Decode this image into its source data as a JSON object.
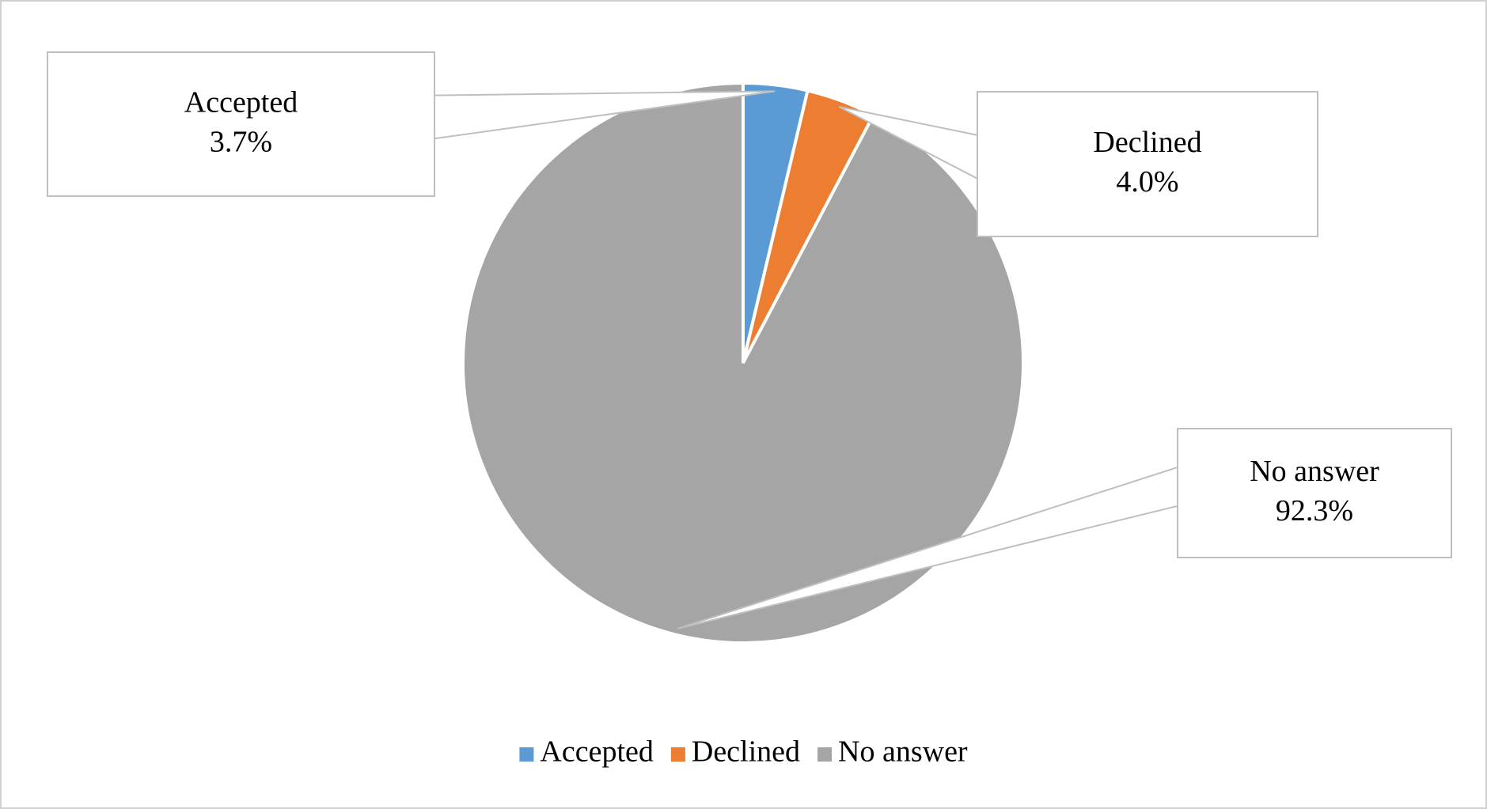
{
  "chart_data": {
    "type": "pie",
    "categories": [
      "Accepted",
      "Declined",
      "No answer"
    ],
    "values": [
      3.7,
      4.0,
      92.3
    ],
    "value_labels": [
      "3.7%",
      "4.0%",
      "92.3%"
    ],
    "colors": [
      "#5b9bd5",
      "#ed7d31",
      "#a5a5a5"
    ],
    "legend": "bottom"
  }
}
